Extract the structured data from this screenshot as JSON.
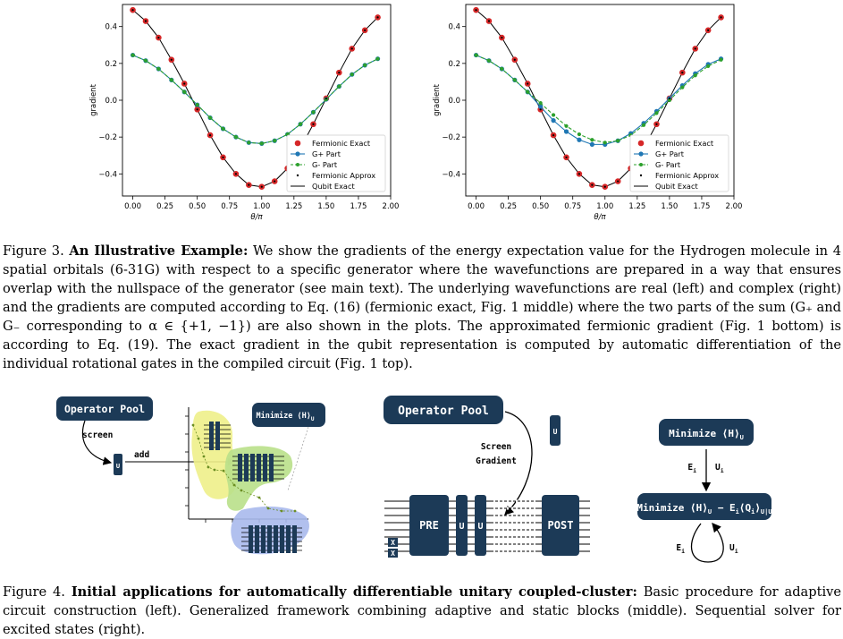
{
  "figure3": {
    "caption_label": "Figure 3.",
    "caption_title": "An Illustrative Example:",
    "caption_body": "We show the gradients of the energy expectation value for the Hydrogen molecule in 4 spatial orbitals (6-31G) with respect to a specific generator where the wavefunctions are prepared in a way that ensures overlap with the nullspace of the generator (see main text).  The underlying wavefunctions are real (left) and complex (right) and the gradients are computed according to Eq. (16) (fermionic exact, Fig. 1 middle) where the two parts of the sum (G₊ and G₋ corresponding to α ∈ {+1, −1}) are also shown in the plots. The approximated fermionic gradient (Fig. 1 bottom) is according to Eq. (19). The exact gradient in the qubit representation is computed by automatic differentiation of the individual rotational gates in the compiled circuit (Fig. 1 top)."
  },
  "chart_data": [
    {
      "type": "line",
      "xlabel": "θ/π",
      "ylabel": "gradient",
      "xlim": [
        -0.08,
        2.0
      ],
      "ylim": [
        -0.52,
        0.52
      ],
      "xticks": [
        "0.00",
        "0.25",
        "0.50",
        "0.75",
        "1.00",
        "1.25",
        "1.50",
        "1.75",
        "2.00"
      ],
      "yticks": [
        "−0.4",
        "−0.2",
        "0.0",
        "0.2",
        "0.4"
      ],
      "legend_position": "lower-right",
      "x": [
        0.0,
        0.1,
        0.2,
        0.3,
        0.4,
        0.5,
        0.6,
        0.7,
        0.8,
        0.9,
        1.0,
        1.1,
        1.2,
        1.3,
        1.4,
        1.5,
        1.6,
        1.7,
        1.8,
        1.9
      ],
      "series": [
        {
          "name": "Fermionic Exact",
          "marker": "red-circle",
          "values": [
            0.49,
            0.43,
            0.34,
            0.22,
            0.09,
            -0.05,
            -0.19,
            -0.31,
            -0.4,
            -0.46,
            -0.47,
            -0.44,
            -0.37,
            -0.26,
            -0.13,
            0.01,
            0.15,
            0.28,
            0.38,
            0.45
          ]
        },
        {
          "name": "G+ Part",
          "marker": "blue-circle",
          "values": [
            0.245,
            0.215,
            0.17,
            0.11,
            0.045,
            -0.025,
            -0.095,
            -0.155,
            -0.2,
            -0.23,
            -0.235,
            -0.22,
            -0.185,
            -0.13,
            -0.065,
            0.005,
            0.075,
            0.14,
            0.19,
            0.225
          ]
        },
        {
          "name": "G- Part",
          "marker": "green-dashed",
          "values": [
            0.245,
            0.215,
            0.17,
            0.11,
            0.045,
            -0.025,
            -0.095,
            -0.155,
            -0.2,
            -0.23,
            -0.235,
            -0.22,
            -0.185,
            -0.13,
            -0.065,
            0.005,
            0.075,
            0.14,
            0.19,
            0.225
          ]
        },
        {
          "name": "Fermionic Approx",
          "marker": "dot",
          "values": [
            0.49,
            0.43,
            0.34,
            0.22,
            0.09,
            -0.05,
            -0.19,
            -0.31,
            -0.4,
            -0.46,
            -0.47,
            -0.44,
            -0.37,
            -0.26,
            -0.13,
            0.01,
            0.15,
            0.28,
            0.38,
            0.45
          ]
        },
        {
          "name": "Qubit Exact",
          "marker": "black-line",
          "values": [
            0.49,
            0.43,
            0.34,
            0.22,
            0.09,
            -0.05,
            -0.19,
            -0.31,
            -0.4,
            -0.46,
            -0.47,
            -0.44,
            -0.37,
            -0.26,
            -0.13,
            0.01,
            0.15,
            0.28,
            0.38,
            0.45
          ]
        }
      ]
    },
    {
      "type": "line",
      "xlabel": "θ/π",
      "ylabel": "gradient",
      "xlim": [
        -0.08,
        2.0
      ],
      "ylim": [
        -0.52,
        0.52
      ],
      "xticks": [
        "0.00",
        "0.25",
        "0.50",
        "0.75",
        "1.00",
        "1.25",
        "1.50",
        "1.75",
        "2.00"
      ],
      "yticks": [
        "−0.4",
        "−0.2",
        "0.0",
        "0.2",
        "0.4"
      ],
      "legend_position": "lower-right",
      "x": [
        0.0,
        0.1,
        0.2,
        0.3,
        0.4,
        0.5,
        0.6,
        0.7,
        0.8,
        0.9,
        1.0,
        1.1,
        1.2,
        1.3,
        1.4,
        1.5,
        1.6,
        1.7,
        1.8,
        1.9
      ],
      "series": [
        {
          "name": "Fermionic Exact",
          "marker": "red-circle",
          "values": [
            0.49,
            0.43,
            0.34,
            0.22,
            0.09,
            -0.05,
            -0.19,
            -0.31,
            -0.4,
            -0.46,
            -0.47,
            -0.44,
            -0.37,
            -0.26,
            -0.13,
            0.01,
            0.15,
            0.28,
            0.38,
            0.45
          ]
        },
        {
          "name": "G+ Part",
          "marker": "blue-circle",
          "values": [
            0.245,
            0.215,
            0.17,
            0.11,
            0.045,
            -0.035,
            -0.11,
            -0.17,
            -0.215,
            -0.24,
            -0.24,
            -0.22,
            -0.18,
            -0.125,
            -0.06,
            0.01,
            0.08,
            0.145,
            0.195,
            0.225
          ]
        },
        {
          "name": "G- Part",
          "marker": "green-dashed",
          "values": [
            0.245,
            0.215,
            0.17,
            0.11,
            0.045,
            -0.015,
            -0.08,
            -0.14,
            -0.185,
            -0.215,
            -0.23,
            -0.22,
            -0.19,
            -0.135,
            -0.07,
            0.0,
            0.07,
            0.135,
            0.185,
            0.22
          ]
        },
        {
          "name": "Fermionic Approx",
          "marker": "dot",
          "values": [
            0.49,
            0.43,
            0.34,
            0.22,
            0.09,
            -0.05,
            -0.19,
            -0.31,
            -0.4,
            -0.46,
            -0.47,
            -0.44,
            -0.37,
            -0.26,
            -0.13,
            0.01,
            0.15,
            0.28,
            0.38,
            0.45
          ]
        },
        {
          "name": "Qubit Exact",
          "marker": "black-line",
          "values": [
            0.49,
            0.43,
            0.34,
            0.22,
            0.09,
            -0.05,
            -0.19,
            -0.31,
            -0.4,
            -0.46,
            -0.47,
            -0.44,
            -0.37,
            -0.26,
            -0.13,
            0.01,
            0.15,
            0.28,
            0.38,
            0.45
          ]
        }
      ]
    }
  ],
  "figure4": {
    "left": {
      "operator_pool": "Operator Pool",
      "screen": "screen",
      "add": "add",
      "u": "U",
      "minimize": "Minimize ⟨H⟩",
      "minimize_sub": "U"
    },
    "middle": {
      "operator_pool": "Operator Pool",
      "screen_gradient_1": "Screen",
      "screen_gradient_2": "Gradient",
      "pre": "PRE",
      "post": "POST",
      "u": "U",
      "x": "X"
    },
    "right": {
      "minimize_top": "Minimize ⟨H⟩",
      "minimize_top_sub": "U",
      "minimize_bottom": "Minimize ⟨H⟩",
      "minimize_bottom_sub1": "U",
      "minimize_bottom_mid": " − E",
      "minimize_bottom_mid2": "⟨Q",
      "minimize_bottom_sub2": "i",
      "minimize_bottom_sub3": "⟩",
      "minimize_bottom_sub4": "U|U",
      "e_label": "E",
      "e_sub": "i",
      "u_label": "U",
      "u_sub": "i"
    },
    "caption_label": "Figure 4.",
    "caption_title": "Initial applications for automatically differentiable unitary coupled-cluster:",
    "caption_body": "Basic procedure for adaptive circuit construction (left).  Generalized framework combining adaptive and static blocks (middle).  Sequential solver for excited states (right)."
  },
  "colors": {
    "navy": "#1c3a57",
    "fermionic_exact": "#d62728",
    "g_plus": "#1f77b4",
    "g_minus": "#2ca02c",
    "yellow_blob": "#eef08a",
    "green_blob": "#b9e08a",
    "blue_blob": "#a9b9ec"
  }
}
